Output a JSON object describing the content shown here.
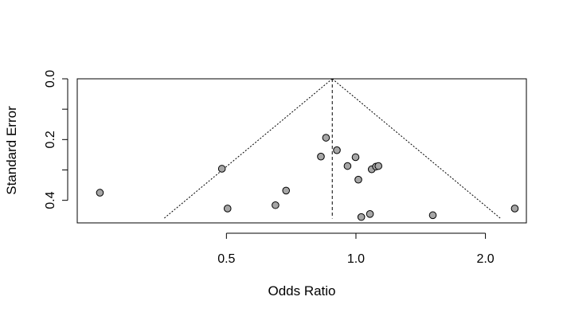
{
  "chart_data": {
    "type": "scatter",
    "title": "",
    "xlabel": "Odds Ratio",
    "ylabel": "Standard Error",
    "x_scale": "log",
    "xlim": [
      0.225,
      2.49
    ],
    "ylim": [
      0.4743,
      0.0
    ],
    "x_ticks": [
      {
        "value": 0.5,
        "label": "0.5"
      },
      {
        "value": 1.0,
        "label": "1.0"
      },
      {
        "value": 2.0,
        "label": "2.0"
      }
    ],
    "y_ticks": [
      {
        "value": 0.0,
        "label": "0.0"
      },
      {
        "value": 0.1,
        "label": ""
      },
      {
        "value": 0.2,
        "label": "0.2"
      },
      {
        "value": 0.3,
        "label": ""
      },
      {
        "value": 0.4,
        "label": "0.4"
      }
    ],
    "summary_odds_ratio": 0.881,
    "funnel_max_se": 0.46,
    "grid": false,
    "point_color": "#a6a6a6",
    "points": [
      {
        "x": 0.254,
        "y": 0.375
      },
      {
        "x": 0.488,
        "y": 0.296
      },
      {
        "x": 0.503,
        "y": 0.427
      },
      {
        "x": 0.65,
        "y": 0.416
      },
      {
        "x": 0.688,
        "y": 0.368
      },
      {
        "x": 0.829,
        "y": 0.256
      },
      {
        "x": 0.852,
        "y": 0.194
      },
      {
        "x": 0.903,
        "y": 0.235
      },
      {
        "x": 0.956,
        "y": 0.287
      },
      {
        "x": 0.998,
        "y": 0.258
      },
      {
        "x": 1.013,
        "y": 0.332
      },
      {
        "x": 1.029,
        "y": 0.455
      },
      {
        "x": 1.078,
        "y": 0.445
      },
      {
        "x": 1.088,
        "y": 0.298
      },
      {
        "x": 1.113,
        "y": 0.289
      },
      {
        "x": 1.128,
        "y": 0.287
      },
      {
        "x": 1.509,
        "y": 0.449
      },
      {
        "x": 2.34,
        "y": 0.427
      }
    ]
  }
}
